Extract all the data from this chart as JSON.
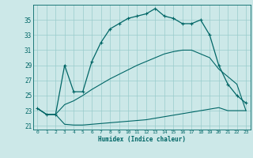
{
  "xlabel": "Humidex (Indice chaleur)",
  "bg_color": "#cce8e8",
  "grid_color": "#99cccc",
  "line_color": "#006666",
  "xlim": [
    -0.5,
    23.5
  ],
  "ylim": [
    20.5,
    37.0
  ],
  "yticks": [
    21,
    23,
    25,
    27,
    29,
    31,
    33,
    35
  ],
  "xticks": [
    0,
    1,
    2,
    3,
    4,
    5,
    6,
    7,
    8,
    9,
    10,
    11,
    12,
    13,
    14,
    15,
    16,
    17,
    18,
    19,
    20,
    21,
    22,
    23
  ],
  "line1_x": [
    0,
    1,
    2,
    3,
    4,
    5,
    6,
    7,
    8,
    9,
    10,
    11,
    12,
    13,
    14,
    15,
    16,
    17,
    18,
    19,
    20,
    21,
    22,
    23
  ],
  "line1_y": [
    23.3,
    22.5,
    22.5,
    29.0,
    25.5,
    25.5,
    29.5,
    32.0,
    33.8,
    34.5,
    35.2,
    35.5,
    35.8,
    36.5,
    35.5,
    35.2,
    34.5,
    34.5,
    35.0,
    33.0,
    29.0,
    26.5,
    25.0,
    24.0
  ],
  "line2_x": [
    0,
    1,
    2,
    3,
    4,
    5,
    6,
    7,
    8,
    9,
    10,
    11,
    12,
    13,
    14,
    15,
    16,
    17,
    18,
    19,
    20,
    21,
    22,
    23
  ],
  "line2_y": [
    23.3,
    22.5,
    22.5,
    21.2,
    21.1,
    21.1,
    21.2,
    21.3,
    21.4,
    21.5,
    21.6,
    21.7,
    21.8,
    22.0,
    22.2,
    22.4,
    22.6,
    22.8,
    23.0,
    23.2,
    23.4,
    23.0,
    23.0,
    23.0
  ],
  "line3_x": [
    0,
    1,
    2,
    3,
    4,
    5,
    6,
    7,
    8,
    9,
    10,
    11,
    12,
    13,
    14,
    15,
    16,
    17,
    18,
    19,
    20,
    21,
    22,
    23
  ],
  "line3_y": [
    23.3,
    22.5,
    22.5,
    23.8,
    24.3,
    25.0,
    25.8,
    26.5,
    27.2,
    27.8,
    28.4,
    29.0,
    29.5,
    30.0,
    30.5,
    30.8,
    31.0,
    31.0,
    30.5,
    30.0,
    28.5,
    27.5,
    26.5,
    23.0
  ]
}
